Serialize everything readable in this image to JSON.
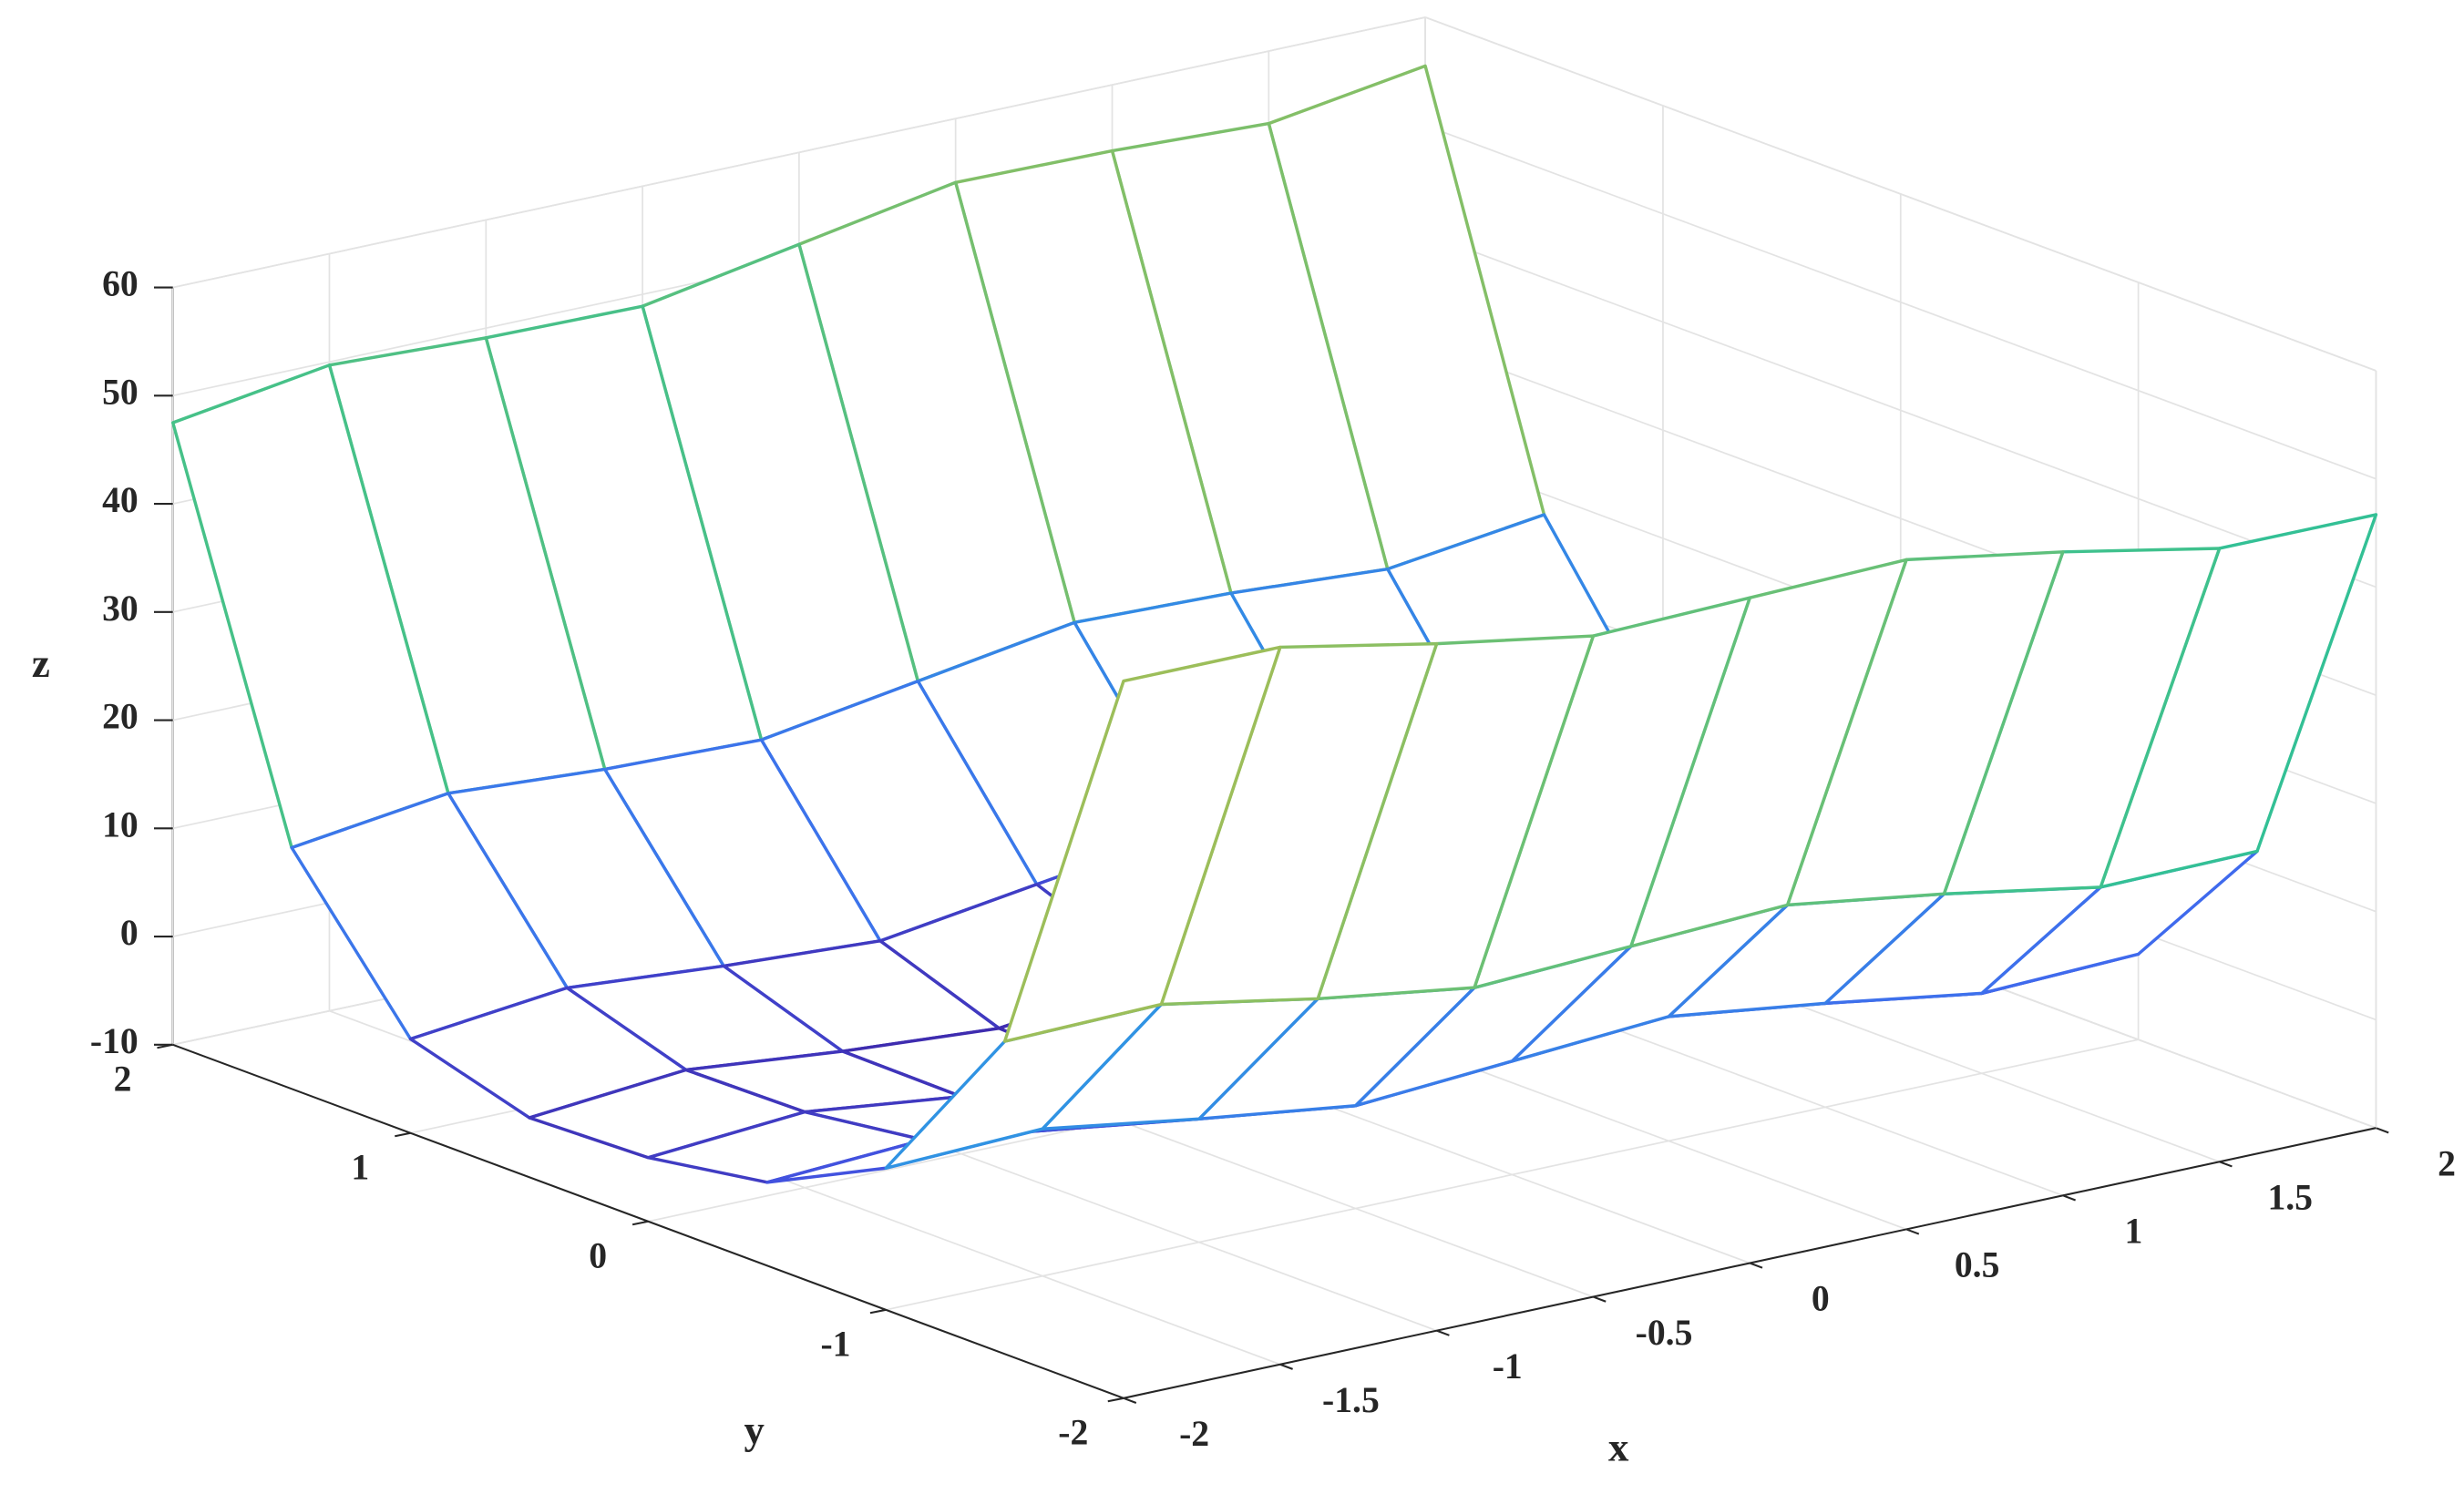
{
  "chart_data": {
    "type": "mesh3d",
    "x": [
      -2,
      -1.5,
      -1,
      -0.5,
      0,
      0.5,
      1,
      1.5,
      2
    ],
    "y": [
      -2,
      -1.5,
      -1,
      -0.5,
      0,
      0.5,
      1,
      1.5,
      2
    ],
    "z": [
      [
        56.3,
        56.3,
        53.5,
        51.1,
        51.5,
        51.9,
        49.5,
        46.7,
        46.7
      ],
      [
        18.9,
        19.2,
        16.6,
        14.5,
        15.2,
        15.9,
        13.8,
        11.3,
        11.5
      ],
      [
        3.1,
        3.6,
        1.4,
        -0.5,
        0.5,
        1.5,
        -0.4,
        -2.6,
        -2.1
      ],
      [
        -2.3,
        -1.5,
        -3.5,
        -5.0,
        -3.8,
        -2.6,
        -4.1,
        -6.1,
        -5.3
      ],
      [
        -4.1,
        -3.0,
        -4.7,
        -6.0,
        -4.5,
        -3.0,
        -4.3,
        -6.0,
        -4.9
      ],
      [
        -4.5,
        -3.2,
        -4.6,
        -5.6,
        -3.8,
        -2.0,
        -3.0,
        -4.4,
        -3.1
      ],
      [
        -1.3,
        0.3,
        -0.8,
        -1.6,
        0.5,
        2.6,
        1.8,
        0.7,
        2.3
      ],
      [
        12.3,
        14.2,
        13.3,
        12.9,
        15.2,
        17.5,
        17.1,
        16.2,
        18.1
      ],
      [
        47.5,
        49.7,
        49.1,
        48.9,
        51.5,
        54.1,
        53.9,
        53.3,
        55.5
      ]
    ],
    "xlim": [
      -2,
      2
    ],
    "ylim": [
      -2,
      2
    ],
    "zlim": [
      -10,
      60
    ],
    "xticks": [
      -2,
      -1.5,
      -1,
      -0.5,
      0,
      0.5,
      1,
      1.5,
      2
    ],
    "yticks": [
      -2,
      -1,
      0,
      1,
      2
    ],
    "zticks": [
      -10,
      0,
      10,
      20,
      30,
      40,
      50,
      60
    ],
    "xlabel": "x",
    "ylabel": "y",
    "zlabel": "z",
    "grid": true,
    "colormap": [
      "#3e26a8",
      "#4360f0",
      "#2f96e2",
      "#16b2c6",
      "#35c192",
      "#a6be54",
      "#f4bb3e",
      "#f9fb15"
    ]
  }
}
